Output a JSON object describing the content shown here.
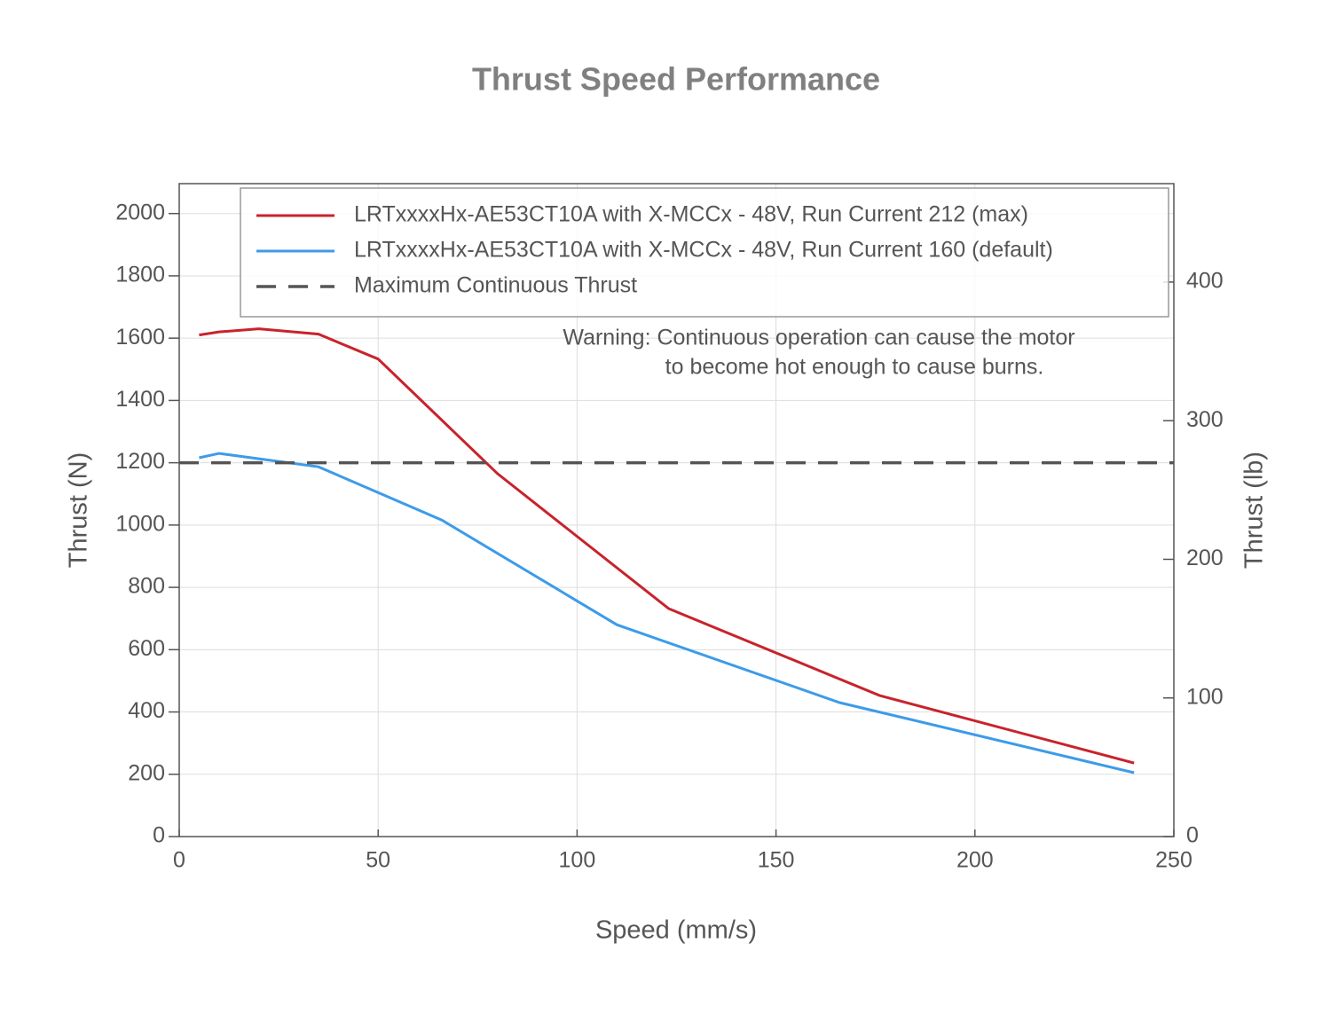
{
  "chart_data": {
    "type": "line",
    "title": "Thrust Speed Performance",
    "xlabel": "Speed (mm/s)",
    "ylabel": "Thrust (N)",
    "y2label": "Thrust (lb)",
    "annotation": [
      "Warning: Continuous operation can cause the motor",
      "to become hot enough to cause burns."
    ],
    "xlim": [
      0,
      250
    ],
    "xticks": [
      0,
      50,
      100,
      150,
      200,
      250
    ],
    "ylim": [
      0,
      2096
    ],
    "yticks": [
      0,
      200,
      400,
      600,
      800,
      1000,
      1200,
      1400,
      1600,
      1800,
      2000
    ],
    "y2lim": [
      0,
      471
    ],
    "y2ticks": [
      0,
      100,
      200,
      300,
      400
    ],
    "grid": true,
    "legend": "upper right",
    "series": [
      {
        "name": "LRTxxxxHx-AE53CT10A with X-MCCx - 48V, Run Current 212 (max)",
        "color": "#c8232c",
        "dash": false,
        "x": [
          5,
          10,
          20,
          35,
          50,
          80,
          123,
          176,
          240
        ],
        "values": [
          1610,
          1620,
          1630,
          1613,
          1533,
          1165,
          732,
          453,
          236
        ]
      },
      {
        "name": "LRTxxxxHx-AE53CT10A with X-MCCx - 48V, Run Current 160 (default)",
        "color": "#3d9be9",
        "dash": false,
        "x": [
          5,
          10,
          35,
          66,
          110,
          166,
          240
        ],
        "values": [
          1216,
          1230,
          1187,
          1016,
          680,
          430,
          205
        ]
      },
      {
        "name": "Maximum Continuous Thrust",
        "color": "#555555",
        "dash": true,
        "x": [
          0,
          250
        ],
        "values": [
          1200,
          1200
        ]
      }
    ]
  }
}
